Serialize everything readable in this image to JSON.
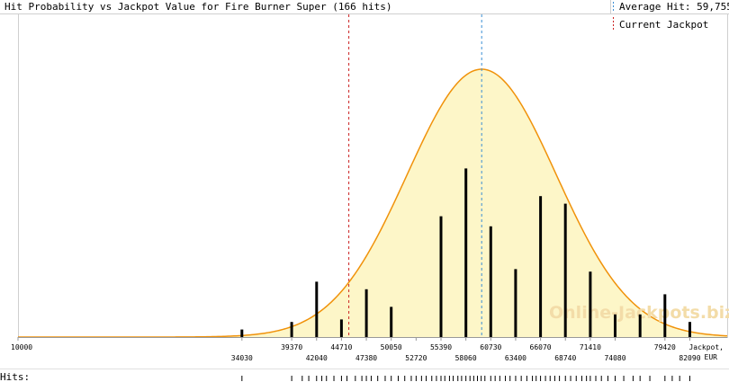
{
  "chart_data": {
    "type": "bar",
    "title": "Hit Probability vs Jackpot Value for Fire Burner Super (166 hits)",
    "xlabel": "Jackpot,",
    "xunit": "EUR",
    "xlim": [
      10000,
      86100
    ],
    "x_ticks_upper": [
      10000,
      39370,
      44710,
      50050,
      55390,
      60730,
      66070,
      71410,
      79420
    ],
    "x_ticks_lower": [
      34030,
      42040,
      47380,
      52720,
      58060,
      63400,
      68740,
      74080,
      82090
    ],
    "bars": [
      {
        "x": 34030,
        "value": 3
      },
      {
        "x": 39370,
        "value": 6
      },
      {
        "x": 42040,
        "value": 22
      },
      {
        "x": 44710,
        "value": 7
      },
      {
        "x": 47380,
        "value": 19
      },
      {
        "x": 50050,
        "value": 12
      },
      {
        "x": 55390,
        "value": 48
      },
      {
        "x": 58060,
        "value": 67
      },
      {
        "x": 60730,
        "value": 44
      },
      {
        "x": 63400,
        "value": 27
      },
      {
        "x": 66070,
        "value": 56
      },
      {
        "x": 68740,
        "value": 53
      },
      {
        "x": 71410,
        "value": 26
      },
      {
        "x": 74080,
        "value": 9
      },
      {
        "x": 76750,
        "value": 9
      },
      {
        "x": 79420,
        "value": 17
      },
      {
        "x": 82090,
        "value": 6
      }
    ],
    "curve": {
      "mean": 59755,
      "sd": 8000,
      "fill": "#fdf6c8",
      "stroke": "#f0920a"
    },
    "average_hit": 59755,
    "current_jackpot": 45500,
    "legend": [
      {
        "label": "Average Hit: 59,755",
        "color": "#3a8ed4",
        "style": "dashed"
      },
      {
        "label": "Current Jackpot",
        "color": "#cc2222",
        "style": "dashed"
      }
    ],
    "hits_label": "Hits:",
    "hits": [
      34030,
      39370,
      40500,
      41200,
      42040,
      42600,
      43100,
      43900,
      44710,
      45300,
      46200,
      46900,
      47380,
      47900,
      48600,
      49400,
      50050,
      50800,
      51500,
      52200,
      52720,
      53300,
      53800,
      54400,
      54900,
      55390,
      55800,
      56300,
      56700,
      57200,
      57600,
      58060,
      58500,
      58900,
      59300,
      59700,
      60100,
      60730,
      61200,
      61700,
      62300,
      62800,
      63400,
      64000,
      64600,
      65200,
      65600,
      66070,
      66600,
      67100,
      67600,
      68100,
      68740,
      69300,
      69900,
      70500,
      71000,
      71410,
      72000,
      72600,
      73300,
      74080,
      75000,
      76000,
      76750,
      77800,
      79420,
      80200,
      81000,
      82090
    ],
    "watermark": "Online-Jackpots.biz",
    "grid": false
  }
}
